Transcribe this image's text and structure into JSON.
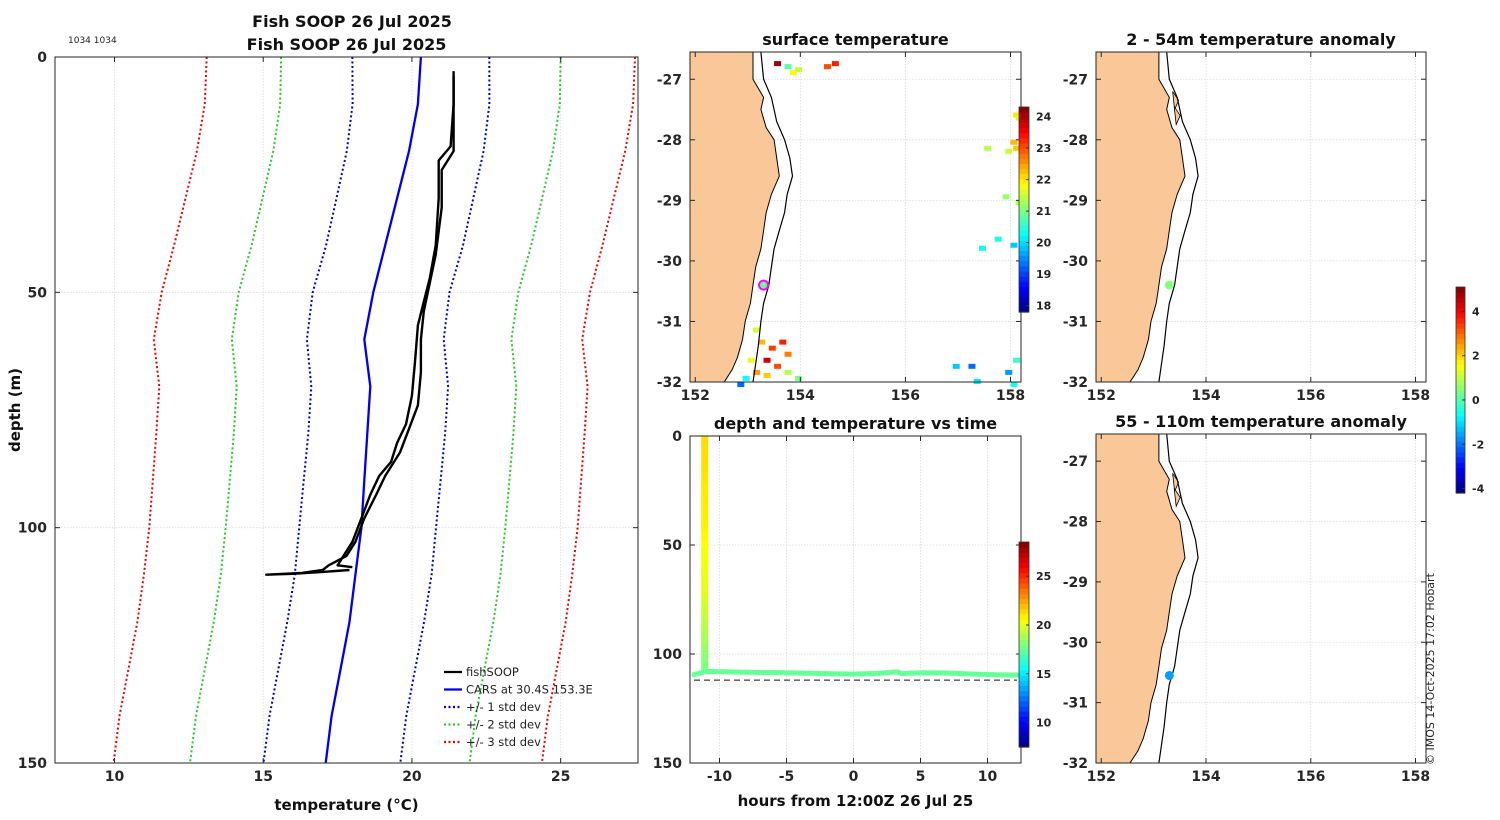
{
  "colors": {
    "land": "#fac898",
    "grid": "#d9d9d9",
    "axis": "#262626",
    "fish": "#000000",
    "cars": "#0000ee",
    "std1": "#0000cc",
    "std2": "#22cc22",
    "std3": "#ee0000",
    "magenta": "#ff00ff"
  },
  "profile_id": "1034 1034",
  "credit": "© IMOS 14-Oct-2025 17:02 Hobart",
  "chart_data": [
    {
      "type": "line",
      "id": "profile",
      "title": "Fish SOOP 26 Jul 2025",
      "xlabel": "temperature (°C)",
      "ylabel": "depth (m)",
      "xlim": [
        8,
        27.6
      ],
      "ylim": [
        0,
        150
      ],
      "xticks": [
        10,
        15,
        20,
        25
      ],
      "yticks": [
        0,
        50,
        100,
        150
      ],
      "legend": {
        "position": "bottom-right",
        "entries": [
          "fishSOOP",
          "CARS at 30.4S 153.3E",
          "+/- 1 std dev",
          "+/- 2 std dev",
          "+/- 3 std dev"
        ]
      },
      "series": [
        {
          "name": "CARS",
          "depth": [
            0,
            10,
            20,
            30,
            40,
            50,
            60,
            70,
            80,
            90,
            100,
            110,
            120,
            130,
            140,
            150
          ],
          "values": [
            20.3,
            20.2,
            19.9,
            19.5,
            19.1,
            18.7,
            18.4,
            18.6,
            18.5,
            18.4,
            18.3,
            18.1,
            17.9,
            17.6,
            17.3,
            17.1
          ]
        },
        {
          "name": "std1",
          "sd": 2.3
        },
        {
          "name": "std2",
          "sd": 4.7
        },
        {
          "name": "std3",
          "sd": 7.2
        },
        {
          "name": "fishSOOP down",
          "points": [
            [
              21.4,
              3
            ],
            [
              21.4,
              10
            ],
            [
              21.3,
              19
            ],
            [
              20.9,
              22
            ],
            [
              20.9,
              30
            ],
            [
              20.8,
              40
            ],
            [
              20.6,
              47
            ],
            [
              20.4,
              52
            ],
            [
              20.2,
              57
            ],
            [
              20.1,
              65
            ],
            [
              20.0,
              72
            ],
            [
              19.8,
              78
            ],
            [
              19.5,
              82
            ],
            [
              19.3,
              86
            ],
            [
              18.9,
              89
            ],
            [
              18.6,
              93
            ],
            [
              18.3,
              98
            ],
            [
              18.0,
              103
            ],
            [
              17.7,
              106
            ],
            [
              17.5,
              108
            ],
            [
              18.0,
              108.4
            ]
          ]
        },
        {
          "name": "fishSOOP up",
          "points": [
            [
              17.9,
              109
            ],
            [
              17.0,
              109.4
            ],
            [
              16.0,
              109.8
            ],
            [
              15.1,
              110
            ],
            [
              16.3,
              109.6
            ],
            [
              17.0,
              109.0
            ],
            [
              17.2,
              108
            ],
            [
              17.8,
              106
            ],
            [
              18.1,
              103
            ],
            [
              18.4,
              98
            ],
            [
              18.8,
              93
            ],
            [
              19.1,
              89
            ],
            [
              19.6,
              84
            ],
            [
              19.9,
              79
            ],
            [
              20.2,
              74
            ],
            [
              20.3,
              67
            ],
            [
              20.3,
              60
            ],
            [
              20.4,
              54
            ],
            [
              20.6,
              48
            ],
            [
              20.8,
              42
            ],
            [
              21.0,
              32
            ],
            [
              21.0,
              24
            ],
            [
              21.4,
              20
            ],
            [
              21.4,
              12
            ],
            [
              21.4,
              4
            ]
          ]
        }
      ]
    },
    {
      "type": "heatmap",
      "id": "surface",
      "title": "surface temperature",
      "xlim": [
        151.9,
        158.2
      ],
      "ylim": [
        -32,
        -26.55
      ],
      "xticks": [
        152,
        154,
        156,
        158
      ],
      "yticks": [
        -27,
        -28,
        -29,
        -30,
        -31,
        -32
      ],
      "colorbar": {
        "min": 17.8,
        "max": 24.3,
        "ticks": [
          18,
          19,
          20,
          21,
          22,
          23,
          24
        ]
      },
      "marker": {
        "lon": 153.3,
        "lat": -30.4,
        "label": "fishSOOP position"
      },
      "cells": [
        [
          153.7,
          -26.75,
          20.8
        ],
        [
          153.8,
          -26.85,
          21.8
        ],
        [
          153.9,
          -26.8,
          21.5
        ],
        [
          154.45,
          -26.75,
          23.0
        ],
        [
          154.6,
          -26.7,
          23.3
        ],
        [
          153.5,
          -26.7,
          24.1
        ],
        [
          158.05,
          -27.55,
          22.0
        ],
        [
          158.1,
          -27.6,
          21.6
        ],
        [
          158.0,
          -28.0,
          22.3
        ],
        [
          158.05,
          -28.1,
          22.2
        ],
        [
          157.9,
          -28.15,
          21.5
        ],
        [
          157.5,
          -28.1,
          21.4
        ],
        [
          157.85,
          -28.9,
          21.2
        ],
        [
          158.1,
          -29.0,
          21.4
        ],
        [
          157.7,
          -29.6,
          20.4
        ],
        [
          158.0,
          -29.7,
          19.9
        ],
        [
          157.4,
          -29.75,
          20.3
        ],
        [
          158.05,
          -31.6,
          20.6
        ],
        [
          157.9,
          -31.8,
          19.6
        ],
        [
          157.2,
          -31.7,
          19.3
        ],
        [
          156.9,
          -31.7,
          19.9
        ],
        [
          158.0,
          -32.0,
          20.4
        ],
        [
          157.3,
          -31.95,
          20.1
        ],
        [
          153.1,
          -31.1,
          21.6
        ],
        [
          153.2,
          -31.3,
          22.3
        ],
        [
          153.4,
          -31.4,
          23.1
        ],
        [
          153.6,
          -31.3,
          23.3
        ],
        [
          153.7,
          -31.5,
          22.7
        ],
        [
          153.3,
          -31.6,
          23.8
        ],
        [
          153.5,
          -31.7,
          23.0
        ],
        [
          153.1,
          -31.8,
          22.5
        ],
        [
          153.3,
          -31.85,
          22.2
        ],
        [
          153.0,
          -31.6,
          21.7
        ],
        [
          153.7,
          -31.8,
          21.4
        ],
        [
          153.9,
          -31.9,
          21.0
        ],
        [
          152.9,
          -31.9,
          20.3
        ],
        [
          152.8,
          -32.0,
          19.3
        ]
      ]
    },
    {
      "type": "scatter",
      "id": "timeseries",
      "title": "depth and temperature vs time",
      "xlabel": "hours from 12:00Z 26 Jul 25",
      "xlim": [
        -12.2,
        12.5
      ],
      "ylim": [
        0,
        150
      ],
      "xticks": [
        -10,
        -5,
        0,
        5,
        10
      ],
      "yticks": [
        0,
        50,
        100,
        150
      ],
      "reference_depth": 112,
      "colorbar": {
        "min": 7.5,
        "max": 28.5,
        "ticks": [
          10,
          15,
          20,
          25
        ]
      },
      "descent": {
        "hours": -11.1,
        "depths": [
          0,
          10,
          20,
          30,
          40,
          50,
          60,
          70,
          80,
          90,
          100,
          108
        ],
        "temps": [
          21.3,
          21.3,
          21.1,
          21.0,
          20.9,
          20.6,
          20.3,
          20.0,
          19.5,
          18.9,
          18.3,
          17.8
        ]
      },
      "bottom": {
        "hours": [
          -11.9,
          -11.0,
          -8,
          -5,
          -2,
          0,
          2,
          3.3,
          3.6,
          5,
          7,
          9,
          11,
          12.2
        ],
        "depths": [
          109.5,
          108,
          108.4,
          108.6,
          109,
          109.2,
          108.8,
          108.2,
          109,
          108.6,
          108.7,
          109.2,
          109.6,
          109.7
        ],
        "temp": 17.5
      }
    },
    {
      "type": "scatter",
      "id": "anom_upper",
      "title": "2 - 54m temperature anomaly",
      "xlim": [
        151.9,
        158.2
      ],
      "ylim": [
        -32,
        -26.55
      ],
      "xticks": [
        152,
        154,
        156,
        158
      ],
      "yticks": [
        -27,
        -28,
        -29,
        -30,
        -31,
        -32
      ],
      "points": [
        {
          "lon": 153.3,
          "lat": -30.4,
          "anomaly": 0.5
        }
      ]
    },
    {
      "type": "scatter",
      "id": "anom_lower",
      "title": "55 - 110m temperature anomaly",
      "xlim": [
        151.9,
        158.2
      ],
      "ylim": [
        -32,
        -26.55
      ],
      "xticks": [
        152,
        154,
        156,
        158
      ],
      "yticks": [
        -27,
        -28,
        -29,
        -30,
        -31,
        -32
      ],
      "points": [
        {
          "lon": 153.3,
          "lat": -30.55,
          "anomaly": -1.6
        }
      ],
      "colorbar": {
        "min": -4.2,
        "max": 5.1,
        "ticks": [
          -4,
          -2,
          0,
          2,
          4
        ]
      }
    }
  ],
  "coast": [
    [
      -26.55,
      153.1
    ],
    [
      -26.8,
      153.1
    ],
    [
      -27.0,
      153.1
    ],
    [
      -27.3,
      153.3
    ],
    [
      -27.5,
      153.25
    ],
    [
      -27.8,
      153.35
    ],
    [
      -28.0,
      153.5
    ],
    [
      -28.3,
      153.55
    ],
    [
      -28.6,
      153.6
    ],
    [
      -28.9,
      153.45
    ],
    [
      -29.2,
      153.35
    ],
    [
      -29.5,
      153.3
    ],
    [
      -29.8,
      153.25
    ],
    [
      -30.1,
      153.15
    ],
    [
      -30.4,
      153.1
    ],
    [
      -30.7,
      153.05
    ],
    [
      -31.0,
      152.95
    ],
    [
      -31.3,
      152.9
    ],
    [
      -31.6,
      152.8
    ],
    [
      -31.8,
      152.7
    ],
    [
      -32.0,
      152.55
    ]
  ],
  "shelf": [
    [
      -26.55,
      153.25
    ],
    [
      -27.0,
      153.3
    ],
    [
      -27.3,
      153.45
    ],
    [
      -27.7,
      153.55
    ],
    [
      -28.0,
      153.7
    ],
    [
      -28.3,
      153.8
    ],
    [
      -28.6,
      153.85
    ],
    [
      -28.9,
      153.75
    ],
    [
      -29.2,
      153.7
    ],
    [
      -29.5,
      153.6
    ],
    [
      -29.8,
      153.5
    ],
    [
      -30.1,
      153.45
    ],
    [
      -30.4,
      153.4
    ],
    [
      -30.7,
      153.3
    ],
    [
      -31.0,
      153.25
    ],
    [
      -31.4,
      153.2
    ],
    [
      -31.7,
      153.15
    ],
    [
      -32.0,
      153.1
    ]
  ]
}
